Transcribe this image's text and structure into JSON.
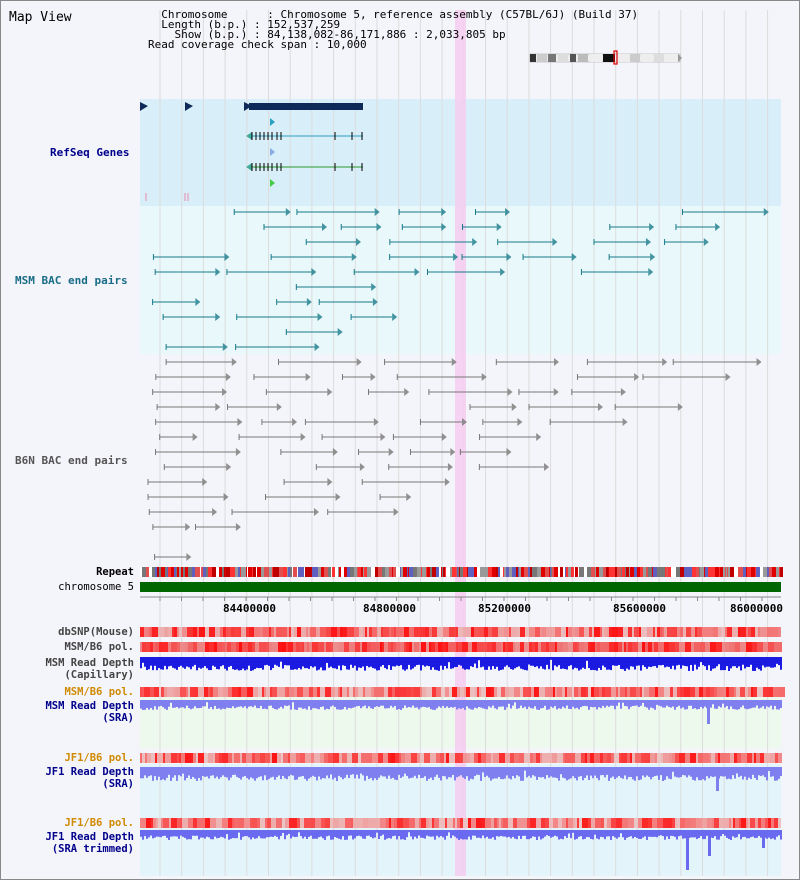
{
  "title": "Map View",
  "info": {
    "chromosome_key": "Chromosome",
    "chromosome_value": "Chromosome 5, reference assembly (C57BL/6J) (Build 37)",
    "length_key": "Length (b.p.)",
    "length_value": "152,537,259",
    "show_key": "Show (b.p.)",
    "show_value": "84,138,082-86,171,886 : 2,033,805 bp",
    "coverage_key": "Read coverage check span",
    "coverage_value": "10,000"
  },
  "tracks": {
    "refseq": "RefSeq Genes",
    "msm_bac": "MSM BAC end pairs",
    "b6n_bac": "B6N BAC end pairs",
    "repeat": "Repeat",
    "chromosome": "chromosome 5",
    "dbsnp": "dbSNP(Mouse)",
    "msm_b6_pol_1": "MSM/B6 pol.",
    "msm_read_depth_cap_1": "MSM Read Depth",
    "msm_read_depth_cap_2": "(Capillary)",
    "msm_b6_pol_2": "MSM/B6 pol.",
    "msm_read_depth_sra_1": "MSM Read Depth",
    "msm_read_depth_sra_2": "(SRA)",
    "jf1_b6_pol_1": "JF1/B6 pol.",
    "jf1_read_depth_sra_1": "JF1 Read Depth",
    "jf1_read_depth_sra_2": "(SRA)",
    "jf1_b6_pol_2": "JF1/B6 pol.",
    "jf1_read_depth_trim_1": "JF1 Read Depth",
    "jf1_read_depth_trim_2": "(SRA trimmed)"
  },
  "axis_ticks": [
    "84400000",
    "84800000",
    "85200000",
    "85600000",
    "86000000"
  ],
  "colors": {
    "refseq_bg": "#d8eef9",
    "msm_bg": "#e9f8fa",
    "b6n_bg": "#f4f4fb",
    "highlight": "#f6cdf0",
    "gene_dark": "#0f2a59",
    "msm_line": "#187a8a",
    "b6n_line": "#777777",
    "chrom_green": "#006600",
    "snp_red": "#e85050",
    "depth_blue": "#1a1ae0",
    "depth_light": "#7f7ff0",
    "label_blue": "#00008b",
    "label_orange": "#d08a00",
    "label_teal": "#1a6d86"
  }
}
